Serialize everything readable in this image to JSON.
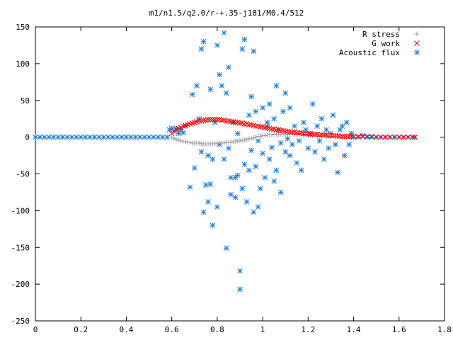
{
  "chart_data": {
    "type": "scatter",
    "title": "m1/n1.5/q2.0/r-+.35-j181/M0.4/512",
    "xlabel": "",
    "ylabel": "",
    "xlim": [
      0,
      1.8
    ],
    "ylim": [
      -250,
      150
    ],
    "x_ticks": [
      "0",
      "0.2",
      "0.4",
      "0.6",
      "0.8",
      "1",
      "1.2",
      "1.4",
      "1.6",
      "1.8"
    ],
    "x_tick_values": [
      0,
      0.2,
      0.4,
      0.6,
      0.8,
      1.0,
      1.2,
      1.4,
      1.6,
      1.8
    ],
    "y_ticks": [
      "150",
      "100",
      "50",
      "0",
      "-50",
      "-100",
      "-150",
      "-200",
      "-250"
    ],
    "y_tick_values": [
      150,
      100,
      50,
      0,
      -50,
      -100,
      -150,
      -200,
      -250
    ],
    "grid": false,
    "legend_position": "top-right",
    "series": [
      {
        "name": "R stress",
        "marker": "plus",
        "color": "#a0a0a0",
        "points": [
          [
            0.6,
            0
          ],
          [
            0.61,
            -2
          ],
          [
            0.62,
            -3
          ],
          [
            0.63,
            -4
          ],
          [
            0.64,
            -5
          ],
          [
            0.65,
            -6
          ],
          [
            0.66,
            -6
          ],
          [
            0.67,
            -7
          ],
          [
            0.68,
            -7
          ],
          [
            0.69,
            -8
          ],
          [
            0.7,
            -8
          ],
          [
            0.71,
            -8
          ],
          [
            0.72,
            -8
          ],
          [
            0.73,
            -9
          ],
          [
            0.74,
            -9
          ],
          [
            0.75,
            -9
          ],
          [
            0.76,
            -9
          ],
          [
            0.77,
            -9
          ],
          [
            0.78,
            -9
          ],
          [
            0.79,
            -9
          ],
          [
            0.8,
            -8
          ],
          [
            0.81,
            -8
          ],
          [
            0.82,
            -8
          ],
          [
            0.83,
            -8
          ],
          [
            0.84,
            -7
          ],
          [
            0.85,
            -7
          ],
          [
            0.86,
            -7
          ],
          [
            0.87,
            -6
          ],
          [
            0.88,
            -6
          ],
          [
            0.89,
            -5
          ],
          [
            0.9,
            -5
          ],
          [
            0.91,
            -4
          ],
          [
            0.92,
            -4
          ],
          [
            0.93,
            -3
          ],
          [
            0.94,
            -2
          ],
          [
            0.95,
            -2
          ],
          [
            0.96,
            -1
          ],
          [
            0.97,
            0
          ],
          [
            0.98,
            1
          ],
          [
            0.99,
            1
          ],
          [
            1.0,
            2
          ],
          [
            1.01,
            2
          ],
          [
            1.02,
            3
          ],
          [
            1.03,
            3
          ],
          [
            1.04,
            3
          ],
          [
            1.05,
            4
          ],
          [
            1.06,
            4
          ],
          [
            1.07,
            4
          ],
          [
            1.08,
            4
          ],
          [
            1.09,
            4
          ],
          [
            1.1,
            4
          ],
          [
            1.11,
            4
          ],
          [
            1.12,
            4
          ],
          [
            1.13,
            4
          ],
          [
            1.14,
            3
          ],
          [
            1.15,
            3
          ],
          [
            1.16,
            3
          ],
          [
            1.17,
            3
          ],
          [
            1.18,
            2
          ],
          [
            1.19,
            2
          ],
          [
            1.2,
            2
          ],
          [
            1.22,
            2
          ],
          [
            1.24,
            1
          ],
          [
            1.26,
            1
          ],
          [
            1.28,
            1
          ],
          [
            1.3,
            1
          ],
          [
            1.32,
            0
          ],
          [
            1.34,
            0
          ],
          [
            1.36,
            0
          ],
          [
            1.38,
            0
          ],
          [
            1.4,
            0
          ]
        ]
      },
      {
        "name": "G work",
        "marker": "cross",
        "color": "#ff0000",
        "points": [
          [
            0.6,
            5
          ],
          [
            0.61,
            8
          ],
          [
            0.62,
            10
          ],
          [
            0.63,
            12
          ],
          [
            0.64,
            13
          ],
          [
            0.65,
            15
          ],
          [
            0.66,
            16
          ],
          [
            0.67,
            17
          ],
          [
            0.68,
            18
          ],
          [
            0.69,
            19
          ],
          [
            0.7,
            20
          ],
          [
            0.71,
            21
          ],
          [
            0.72,
            22
          ],
          [
            0.73,
            22
          ],
          [
            0.74,
            23
          ],
          [
            0.75,
            23
          ],
          [
            0.76,
            24
          ],
          [
            0.77,
            24
          ],
          [
            0.78,
            24
          ],
          [
            0.79,
            24
          ],
          [
            0.8,
            24
          ],
          [
            0.81,
            24
          ],
          [
            0.82,
            23
          ],
          [
            0.83,
            23
          ],
          [
            0.84,
            22
          ],
          [
            0.85,
            22
          ],
          [
            0.86,
            21
          ],
          [
            0.87,
            21
          ],
          [
            0.88,
            20
          ],
          [
            0.89,
            20
          ],
          [
            0.9,
            19
          ],
          [
            0.91,
            19
          ],
          [
            0.92,
            18
          ],
          [
            0.93,
            18
          ],
          [
            0.94,
            17
          ],
          [
            0.95,
            17
          ],
          [
            0.96,
            16
          ],
          [
            0.97,
            15
          ],
          [
            0.98,
            15
          ],
          [
            0.99,
            14
          ],
          [
            1.0,
            14
          ],
          [
            1.01,
            13
          ],
          [
            1.02,
            12
          ],
          [
            1.03,
            12
          ],
          [
            1.04,
            11
          ],
          [
            1.05,
            11
          ],
          [
            1.06,
            10
          ],
          [
            1.07,
            10
          ],
          [
            1.08,
            9
          ],
          [
            1.09,
            9
          ],
          [
            1.1,
            8
          ],
          [
            1.11,
            8
          ],
          [
            1.12,
            7
          ],
          [
            1.13,
            7
          ],
          [
            1.14,
            7
          ],
          [
            1.15,
            6
          ],
          [
            1.16,
            6
          ],
          [
            1.17,
            6
          ],
          [
            1.18,
            5
          ],
          [
            1.19,
            5
          ],
          [
            1.2,
            5
          ],
          [
            1.21,
            4
          ],
          [
            1.22,
            4
          ],
          [
            1.23,
            4
          ],
          [
            1.24,
            4
          ],
          [
            1.25,
            3
          ],
          [
            1.26,
            3
          ],
          [
            1.27,
            3
          ],
          [
            1.28,
            3
          ],
          [
            1.29,
            2
          ],
          [
            1.3,
            2
          ],
          [
            1.31,
            2
          ],
          [
            1.32,
            2
          ],
          [
            1.33,
            2
          ],
          [
            1.34,
            1
          ],
          [
            1.35,
            1
          ],
          [
            1.36,
            1
          ],
          [
            1.37,
            1
          ],
          [
            1.38,
            1
          ],
          [
            1.39,
            1
          ],
          [
            1.4,
            1
          ],
          [
            1.42,
            1
          ],
          [
            1.44,
            1
          ],
          [
            1.46,
            1
          ],
          [
            1.48,
            1
          ],
          [
            1.5,
            0
          ],
          [
            1.52,
            0
          ],
          [
            1.54,
            0
          ],
          [
            1.56,
            0
          ],
          [
            1.58,
            0
          ],
          [
            1.6,
            0
          ],
          [
            1.62,
            0
          ],
          [
            1.64,
            0
          ],
          [
            1.66,
            0
          ],
          [
            1.67,
            0
          ]
        ]
      },
      {
        "name": "Acoustic flux",
        "marker": "star",
        "color": "#1e7fd8",
        "points": [
          [
            0.0,
            0
          ],
          [
            0.02,
            0
          ],
          [
            0.04,
            0
          ],
          [
            0.06,
            0
          ],
          [
            0.08,
            0
          ],
          [
            0.1,
            0
          ],
          [
            0.12,
            0
          ],
          [
            0.14,
            0
          ],
          [
            0.16,
            0
          ],
          [
            0.18,
            0
          ],
          [
            0.2,
            0
          ],
          [
            0.22,
            0
          ],
          [
            0.24,
            0
          ],
          [
            0.26,
            0
          ],
          [
            0.28,
            0
          ],
          [
            0.3,
            0
          ],
          [
            0.32,
            0
          ],
          [
            0.34,
            0
          ],
          [
            0.36,
            0
          ],
          [
            0.38,
            0
          ],
          [
            0.4,
            0
          ],
          [
            0.42,
            0
          ],
          [
            0.44,
            0
          ],
          [
            0.46,
            0
          ],
          [
            0.48,
            0
          ],
          [
            0.5,
            0
          ],
          [
            0.52,
            0
          ],
          [
            0.54,
            0
          ],
          [
            0.56,
            0
          ],
          [
            0.58,
            0
          ],
          [
            0.59,
            10
          ],
          [
            0.6,
            12
          ],
          [
            0.61,
            8
          ],
          [
            0.62,
            12
          ],
          [
            0.63,
            5
          ],
          [
            0.64,
            10
          ],
          [
            0.65,
            6
          ],
          [
            0.66,
            15
          ],
          [
            0.68,
            -68
          ],
          [
            0.69,
            58
          ],
          [
            0.7,
            -42
          ],
          [
            0.71,
            70
          ],
          [
            0.72,
            25
          ],
          [
            0.73,
            -20
          ],
          [
            0.73,
            120
          ],
          [
            0.74,
            -102
          ],
          [
            0.74,
            130
          ],
          [
            0.75,
            -65
          ],
          [
            0.76,
            -25
          ],
          [
            0.76,
            -88
          ],
          [
            0.77,
            -64
          ],
          [
            0.77,
            65
          ],
          [
            0.78,
            -120
          ],
          [
            0.78,
            -30
          ],
          [
            0.79,
            20
          ],
          [
            0.8,
            125
          ],
          [
            0.8,
            -95
          ],
          [
            0.81,
            85
          ],
          [
            0.81,
            -10
          ],
          [
            0.82,
            70
          ],
          [
            0.83,
            142
          ],
          [
            0.83,
            -30
          ],
          [
            0.84,
            -151
          ],
          [
            0.84,
            60
          ],
          [
            0.85,
            -15
          ],
          [
            0.85,
            95
          ],
          [
            0.86,
            -78
          ],
          [
            0.86,
            -55
          ],
          [
            0.87,
            20
          ],
          [
            0.88,
            -55
          ],
          [
            0.88,
            -82
          ],
          [
            0.89,
            -52
          ],
          [
            0.89,
            5
          ],
          [
            0.9,
            -182
          ],
          [
            0.9,
            -207
          ],
          [
            0.91,
            120
          ],
          [
            0.91,
            -70
          ],
          [
            0.92,
            133
          ],
          [
            0.92,
            -37
          ],
          [
            0.93,
            -88
          ],
          [
            0.94,
            30
          ],
          [
            0.94,
            -45
          ],
          [
            0.95,
            -18
          ],
          [
            0.95,
            55
          ],
          [
            0.96,
            117
          ],
          [
            0.96,
            -102
          ],
          [
            0.97,
            35
          ],
          [
            0.97,
            -40
          ],
          [
            0.98,
            -5
          ],
          [
            0.98,
            -95
          ],
          [
            0.99,
            -70
          ],
          [
            1.0,
            -22
          ],
          [
            1.0,
            40
          ],
          [
            1.01,
            -55
          ],
          [
            1.02,
            15
          ],
          [
            1.02,
            20
          ],
          [
            1.03,
            -30
          ],
          [
            1.03,
            45
          ],
          [
            1.04,
            -14
          ],
          [
            1.05,
            25
          ],
          [
            1.05,
            -60
          ],
          [
            1.06,
            -45
          ],
          [
            1.06,
            70
          ],
          [
            1.07,
            10
          ],
          [
            1.08,
            -8
          ],
          [
            1.08,
            -75
          ],
          [
            1.09,
            35
          ],
          [
            1.1,
            -20
          ],
          [
            1.1,
            60
          ],
          [
            1.11,
            -2
          ],
          [
            1.12,
            40
          ],
          [
            1.12,
            -25
          ],
          [
            1.13,
            -10
          ],
          [
            1.14,
            15
          ],
          [
            1.15,
            -35
          ],
          [
            1.16,
            -5
          ],
          [
            1.17,
            -45
          ],
          [
            1.18,
            20
          ],
          [
            1.19,
            10
          ],
          [
            1.2,
            -15
          ],
          [
            1.21,
            5
          ],
          [
            1.22,
            45
          ],
          [
            1.23,
            -20
          ],
          [
            1.24,
            15
          ],
          [
            1.25,
            -5
          ],
          [
            1.26,
            25
          ],
          [
            1.27,
            -30
          ],
          [
            1.28,
            10
          ],
          [
            1.29,
            -15
          ],
          [
            1.3,
            5
          ],
          [
            1.31,
            30
          ],
          [
            1.32,
            -10
          ],
          [
            1.33,
            -48
          ],
          [
            1.34,
            10
          ],
          [
            1.35,
            15
          ],
          [
            1.36,
            -25
          ],
          [
            1.37,
            20
          ],
          [
            1.38,
            -10
          ],
          [
            1.39,
            5
          ],
          [
            1.4,
            0
          ],
          [
            1.42,
            0
          ],
          [
            1.44,
            2
          ],
          [
            1.46,
            0
          ],
          [
            1.48,
            0
          ],
          [
            1.5,
            0
          ],
          [
            1.52,
            0
          ],
          [
            1.54,
            0
          ],
          [
            1.56,
            0
          ],
          [
            1.58,
            0
          ],
          [
            1.6,
            0
          ],
          [
            1.62,
            0
          ],
          [
            1.64,
            0
          ],
          [
            1.66,
            0
          ],
          [
            1.67,
            0
          ]
        ]
      }
    ]
  }
}
